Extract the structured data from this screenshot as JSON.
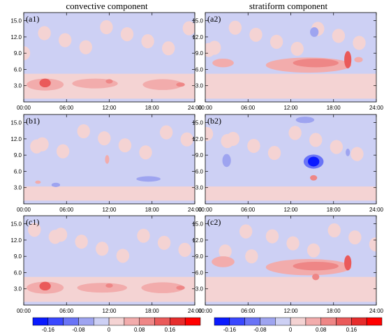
{
  "chart_data": {
    "type": "heatmap",
    "columns": [
      "convective component",
      "stratiform component"
    ],
    "panels": [
      {
        "label": "(a1)",
        "column": 0,
        "row": 0,
        "blobs": [
          {
            "x": 3,
            "y": 3.2,
            "rx": 2.6,
            "ry": 1.1,
            "v": 0.07
          },
          {
            "x": 3,
            "y": 3.5,
            "rx": 0.8,
            "ry": 0.8,
            "v": 0.13
          },
          {
            "x": 10,
            "y": 3.4,
            "rx": 3.2,
            "ry": 0.9,
            "v": 0.06
          },
          {
            "x": 12,
            "y": 3.8,
            "rx": 0.5,
            "ry": 0.4,
            "v": 0.1
          },
          {
            "x": 19.5,
            "y": 3.2,
            "rx": 2.8,
            "ry": 1.0,
            "v": 0.06
          },
          {
            "x": 22,
            "y": 3.2,
            "rx": 0.6,
            "ry": 0.4,
            "v": 0.1
          }
        ]
      },
      {
        "label": "(a2)",
        "column": 1,
        "row": 0,
        "blobs": [
          {
            "x": 14.5,
            "y": 6.8,
            "rx": 6,
            "ry": 1.4,
            "v": 0.06
          },
          {
            "x": 15.5,
            "y": 7.2,
            "rx": 3.2,
            "ry": 0.8,
            "v": 0.09
          },
          {
            "x": 20,
            "y": 7.8,
            "rx": 0.5,
            "ry": 1.6,
            "v": 0.12
          },
          {
            "x": 2.5,
            "y": 7.2,
            "rx": 1.5,
            "ry": 0.8,
            "v": 0.06
          },
          {
            "x": 15.3,
            "y": 12.9,
            "rx": 0.6,
            "ry": 0.9,
            "v": -0.07
          },
          {
            "x": 21.5,
            "y": 7.8,
            "rx": 0.6,
            "ry": 0.5,
            "v": 0.07
          }
        ]
      },
      {
        "label": "(b1)",
        "column": 0,
        "row": 1,
        "blobs": [
          {
            "x": 17.5,
            "y": 4.6,
            "rx": 1.7,
            "ry": 0.5,
            "v": -0.07
          },
          {
            "x": 11.7,
            "y": 8.2,
            "rx": 0.3,
            "ry": 0.8,
            "v": 0.06
          },
          {
            "x": 4.5,
            "y": 3.5,
            "rx": 0.6,
            "ry": 0.4,
            "v": -0.05
          },
          {
            "x": 2,
            "y": 4,
            "rx": 0.4,
            "ry": 0.3,
            "v": 0.06
          }
        ]
      },
      {
        "label": "(b2)",
        "column": 1,
        "row": 1,
        "blobs": [
          {
            "x": 15.2,
            "y": 7.8,
            "rx": 1.4,
            "ry": 1.3,
            "v": -0.11
          },
          {
            "x": 15.2,
            "y": 7.8,
            "rx": 0.8,
            "ry": 0.9,
            "v": -0.17
          },
          {
            "x": 15.2,
            "y": 4.8,
            "rx": 0.5,
            "ry": 0.5,
            "v": 0.1
          },
          {
            "x": 3,
            "y": 8,
            "rx": 0.6,
            "ry": 1.2,
            "v": -0.06
          },
          {
            "x": 20,
            "y": 9.5,
            "rx": 0.3,
            "ry": 0.7,
            "v": -0.06
          },
          {
            "x": 14,
            "y": 15.5,
            "rx": 1.3,
            "ry": 0.6,
            "v": -0.05
          }
        ]
      },
      {
        "label": "(c1)",
        "column": 0,
        "row": 2,
        "blobs": [
          {
            "x": 3,
            "y": 3.2,
            "rx": 2.6,
            "ry": 1.1,
            "v": 0.07
          },
          {
            "x": 3,
            "y": 3.5,
            "rx": 0.8,
            "ry": 0.8,
            "v": 0.13
          },
          {
            "x": 11,
            "y": 3.2,
            "rx": 3.5,
            "ry": 0.9,
            "v": 0.06
          },
          {
            "x": 12,
            "y": 3.6,
            "rx": 0.5,
            "ry": 0.4,
            "v": 0.1
          },
          {
            "x": 19.5,
            "y": 3.2,
            "rx": 3,
            "ry": 1.0,
            "v": 0.06
          },
          {
            "x": 22,
            "y": 3.2,
            "rx": 0.6,
            "ry": 0.4,
            "v": 0.1
          }
        ]
      },
      {
        "label": "(c2)",
        "column": 1,
        "row": 2,
        "blobs": [
          {
            "x": 14.5,
            "y": 7.0,
            "rx": 6,
            "ry": 1.5,
            "v": 0.06
          },
          {
            "x": 15.5,
            "y": 7.2,
            "rx": 3.2,
            "ry": 0.8,
            "v": 0.1
          },
          {
            "x": 20,
            "y": 7.8,
            "rx": 0.5,
            "ry": 1.4,
            "v": 0.12
          },
          {
            "x": 2.5,
            "y": 8.0,
            "rx": 1.6,
            "ry": 1.0,
            "v": 0.06
          },
          {
            "x": 15.5,
            "y": 5.2,
            "rx": 0.5,
            "ry": 0.6,
            "v": 0.09
          }
        ]
      }
    ],
    "x_ticks": [
      "00:00",
      "06:00",
      "12:00",
      "18:00",
      "24:00"
    ],
    "x_range": [
      0,
      24
    ],
    "y_ticks": [
      "3.0",
      "6.0",
      "9.0",
      "12.0",
      "15.0"
    ],
    "y_range": [
      0,
      16.5
    ],
    "colorbar": {
      "tick_labels": [
        "-0.16",
        "-0.08",
        "0",
        "0.08",
        "0.16"
      ],
      "colors": [
        "#0a1aff",
        "#3a48ff",
        "#6a74f6",
        "#9ea4f0",
        "#cdd0f4",
        "#f4d3d3",
        "#f2acac",
        "#ee8686",
        "#ea5a5a",
        "#e62c2c",
        "#ff0000"
      ],
      "levels": [
        -0.16,
        -0.12,
        -0.08,
        -0.04,
        0,
        0.04,
        0.08,
        0.12,
        0.16,
        0.2
      ]
    }
  }
}
